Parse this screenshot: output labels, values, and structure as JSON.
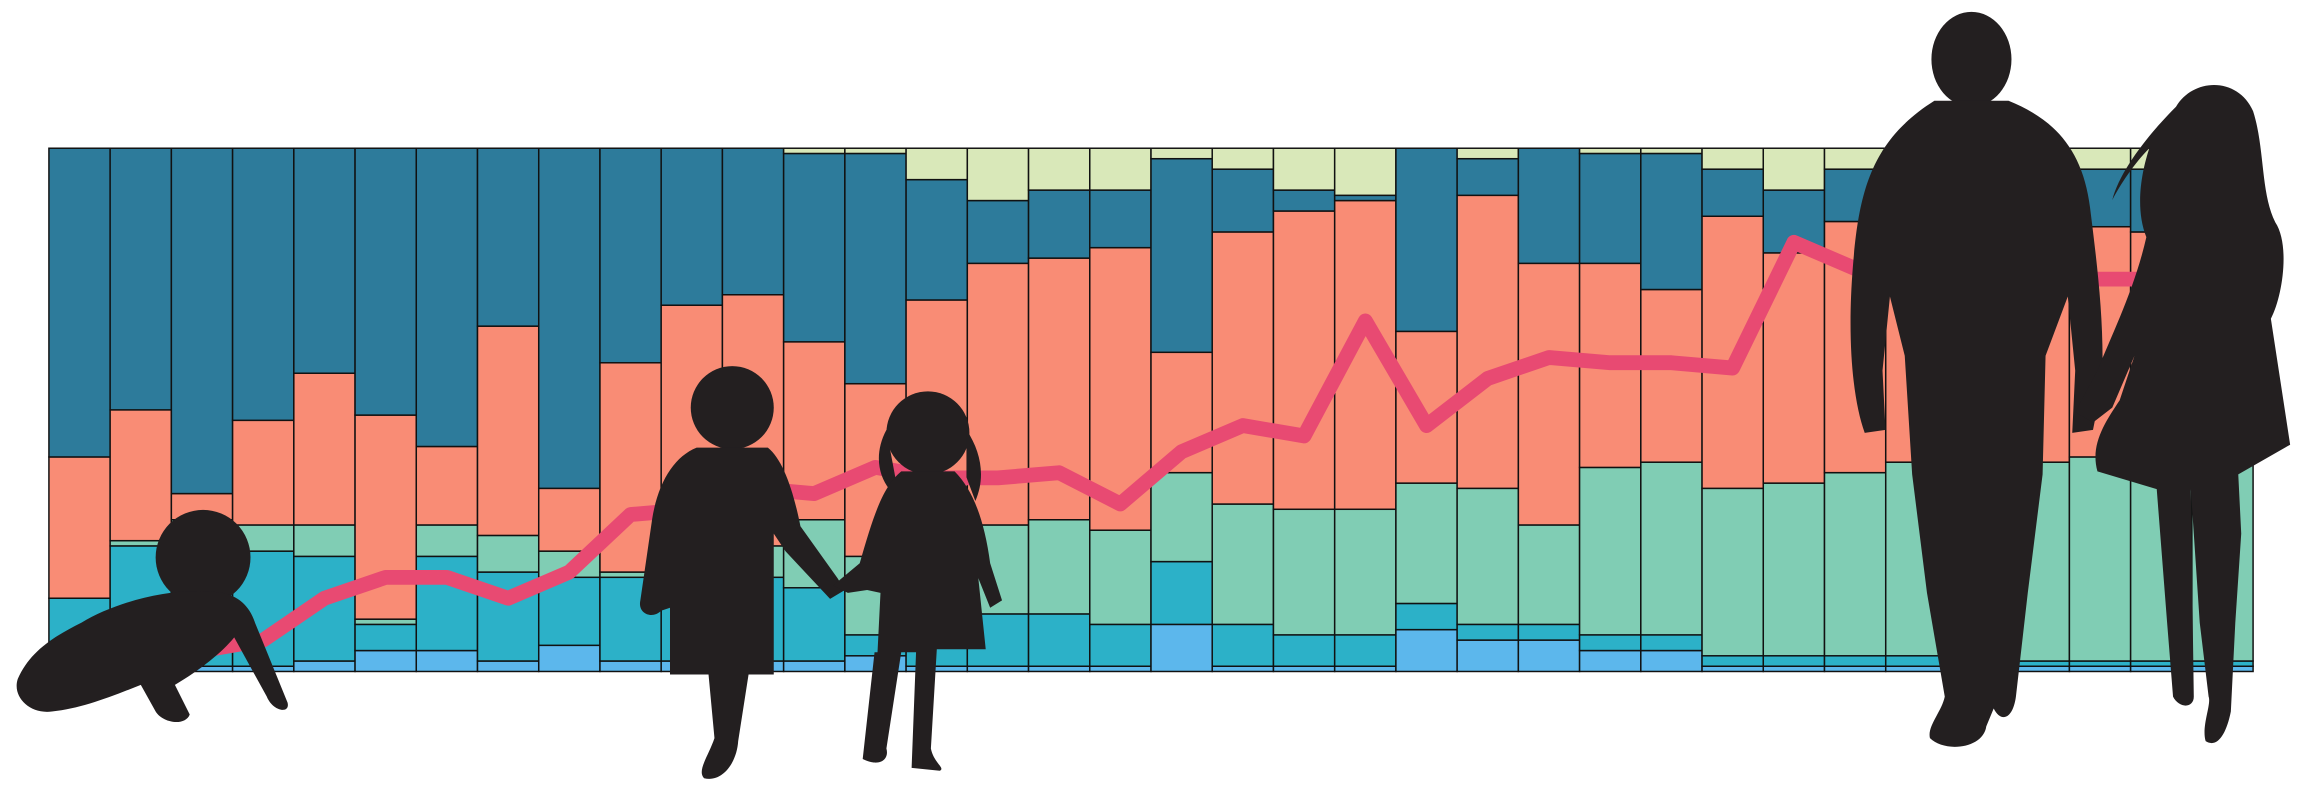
{
  "chart_data": {
    "type": "bar",
    "stacked": true,
    "categories": [
      null,
      null,
      null,
      null,
      null,
      null,
      null,
      null,
      null,
      null,
      null,
      null,
      null,
      null,
      null,
      null,
      null,
      null,
      null,
      null,
      null,
      null,
      null,
      null,
      null,
      null,
      null,
      null,
      null,
      null,
      null,
      null,
      null,
      null,
      null,
      null
    ],
    "ylim": [
      0,
      100
    ],
    "series": [
      {
        "color": "#5cb7ec",
        "values": [
          1,
          1,
          1,
          1,
          2,
          4,
          4,
          2,
          5,
          2,
          2,
          2,
          2,
          3,
          1,
          1,
          1,
          1,
          9,
          1,
          1,
          1,
          8,
          6,
          6,
          4,
          4,
          1,
          1,
          1,
          1,
          1,
          1,
          1,
          1,
          1
        ]
      },
      {
        "color": "#2cb1c8",
        "values": [
          13,
          23,
          23,
          22,
          20,
          5,
          18,
          17,
          13,
          16,
          16,
          16,
          14,
          4,
          8,
          10,
          10,
          8,
          12,
          8,
          6,
          6,
          5,
          3,
          3,
          3,
          3,
          2,
          2,
          2,
          2,
          2,
          1,
          1,
          1,
          1
        ]
      },
      {
        "color": "#80cdb4",
        "values": [
          0,
          1,
          5,
          5,
          6,
          1,
          6,
          7,
          5,
          1,
          4,
          6,
          13,
          15,
          19,
          17,
          18,
          18,
          17,
          23,
          24,
          24,
          23,
          26,
          19,
          32,
          33,
          32,
          33,
          35,
          37,
          37,
          38,
          39,
          40,
          40
        ]
      },
      {
        "color": "#f98c75",
        "values": [
          27,
          25,
          5,
          20,
          29,
          39,
          15,
          40,
          12,
          40,
          48,
          48,
          34,
          33,
          43,
          50,
          50,
          54,
          23,
          52,
          57,
          59,
          29,
          56,
          50,
          39,
          33,
          52,
          44,
          48,
          44,
          42,
          45,
          44,
          42,
          43
        ]
      },
      {
        "color": "#2d7b9b",
        "values": [
          59,
          50,
          66,
          52,
          43,
          51,
          57,
          34,
          65,
          41,
          30,
          28,
          36,
          44,
          23,
          12,
          13,
          11,
          37,
          12,
          4,
          1,
          35,
          7,
          22,
          21,
          26,
          9,
          12,
          10,
          12,
          14,
          11,
          11,
          12,
          11
        ]
      },
      {
        "color": "#d9e8b9",
        "values": [
          0,
          0,
          0,
          0,
          0,
          0,
          0,
          0,
          0,
          0,
          0,
          0,
          1,
          1,
          6,
          10,
          8,
          8,
          2,
          4,
          8,
          9,
          0,
          2,
          0,
          1,
          1,
          4,
          8,
          4,
          4,
          4,
          4,
          4,
          4,
          4
        ]
      }
    ],
    "line": {
      "color": "#e84a72",
      "values": [
        null,
        null,
        4,
        6,
        14,
        18,
        18,
        14,
        19,
        30,
        31,
        35,
        34,
        39,
        37,
        37,
        38,
        32,
        42,
        47,
        45,
        67,
        47,
        56,
        60,
        59,
        59,
        58,
        82,
        77,
        75,
        75,
        75,
        75,
        75,
        76
      ]
    }
  }
}
